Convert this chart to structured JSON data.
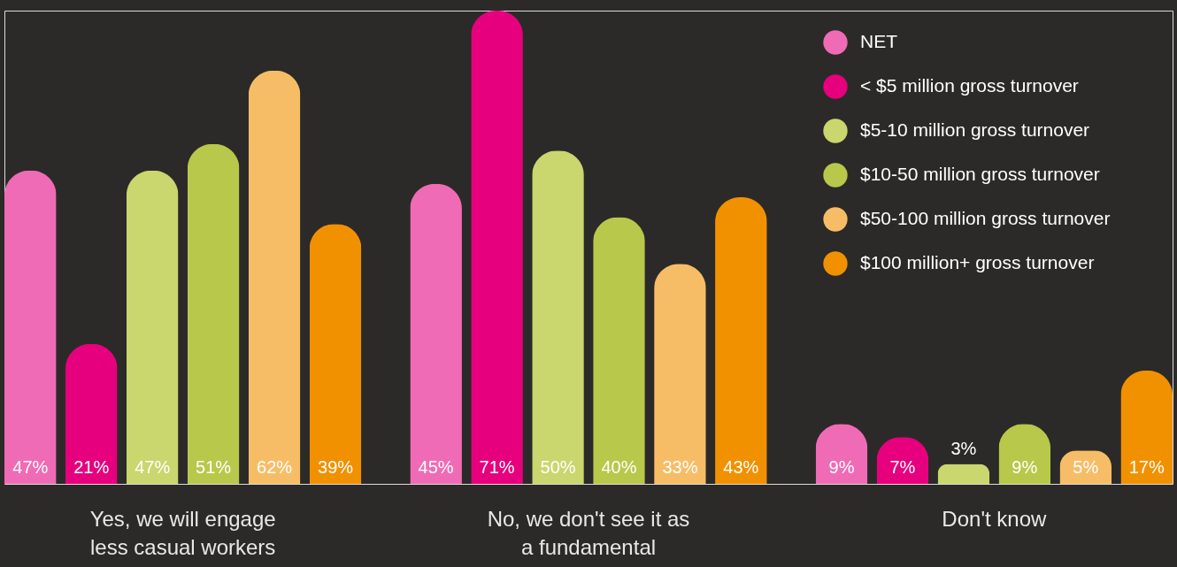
{
  "chart_data": {
    "type": "bar",
    "categories": [
      "Yes, we will engage less casual workers",
      "No, we don't see it as a fundamental",
      "Don't know"
    ],
    "series": [
      {
        "name": "NET",
        "color": "#f06bb5",
        "values": [
          47,
          45,
          9
        ],
        "value_labels": [
          "47%",
          "45%",
          "9%"
        ]
      },
      {
        "name": "< $5 million gross turnover",
        "color": "#e6007e",
        "values": [
          21,
          71,
          7
        ],
        "value_labels": [
          "21%",
          "71%",
          "7%"
        ]
      },
      {
        "name": "$5-10 million gross turnover",
        "color": "#cad66e",
        "values": [
          47,
          50,
          3
        ],
        "value_labels": [
          "47%",
          "50%",
          "3%"
        ]
      },
      {
        "name": "$10-50 million gross turnover",
        "color": "#b8c84a",
        "values": [
          51,
          40,
          9
        ],
        "value_labels": [
          "51%",
          "40%",
          "9%"
        ]
      },
      {
        "name": "$50-100 million gross turnover",
        "color": "#f7bd66",
        "values": [
          62,
          33,
          5
        ],
        "value_labels": [
          "62%",
          "33%",
          "5%"
        ]
      },
      {
        "name": "$100 million+ gross turnover",
        "color": "#f29100",
        "values": [
          39,
          43,
          17
        ],
        "value_labels": [
          "39%",
          "43%",
          "17%"
        ]
      }
    ],
    "legend": "top right",
    "grid": false
  }
}
